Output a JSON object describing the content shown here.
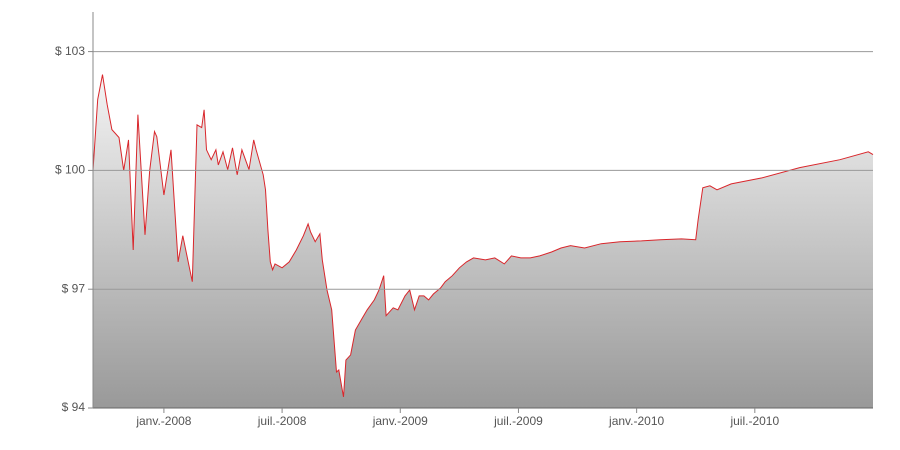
{
  "chart_data": {
    "type": "area",
    "x": [
      2007.7,
      2007.72,
      2007.74,
      2007.76,
      2007.78,
      2007.81,
      2007.83,
      2007.85,
      2007.87,
      2007.89,
      2007.92,
      2007.94,
      2007.96,
      2007.97,
      2008.0,
      2008.03,
      2008.06,
      2008.08,
      2008.12,
      2008.14,
      2008.16,
      2008.17,
      2008.18,
      2008.2,
      2008.22,
      2008.23,
      2008.25,
      2008.27,
      2008.29,
      2008.31,
      2008.33,
      2008.36,
      2008.38,
      2008.39,
      2008.42,
      2008.43,
      2008.44,
      2008.45,
      2008.46,
      2008.47,
      2008.5,
      2008.53,
      2008.56,
      2008.59,
      2008.61,
      2008.62,
      2008.64,
      2008.66,
      2008.67,
      2008.69,
      2008.71,
      2008.73,
      2008.74,
      2008.76,
      2008.77,
      2008.79,
      2008.81,
      2008.84,
      2008.86,
      2008.89,
      2008.91,
      2008.93,
      2008.94,
      2008.97,
      2008.99,
      2009.02,
      2009.04,
      2009.06,
      2009.08,
      2009.1,
      2009.12,
      2009.14,
      2009.17,
      2009.19,
      2009.22,
      2009.25,
      2009.28,
      2009.31,
      2009.36,
      2009.4,
      2009.44,
      2009.47,
      2009.51,
      2009.55,
      2009.59,
      2009.64,
      2009.68,
      2009.72,
      2009.78,
      2009.85,
      2009.93,
      2010.02,
      2010.1,
      2010.19,
      2010.25,
      2010.26,
      2010.28,
      2010.31,
      2010.34,
      2010.4,
      2010.53,
      2010.69,
      2010.86,
      2010.98,
      2011.0
    ],
    "series": [
      {
        "color": "#d9262b",
        "values": [
          100.0,
          101.79,
          102.42,
          101.66,
          101.03,
          100.83,
          100.0,
          100.77,
          97.99,
          101.41,
          98.37,
          100.0,
          100.98,
          100.85,
          99.38,
          100.52,
          97.69,
          98.35,
          97.19,
          101.15,
          101.08,
          101.53,
          100.52,
          100.27,
          100.52,
          100.14,
          100.47,
          100.02,
          100.57,
          99.89,
          100.52,
          100.02,
          100.77,
          100.52,
          99.89,
          99.51,
          98.5,
          97.69,
          97.49,
          97.64,
          97.54,
          97.69,
          97.99,
          98.35,
          98.65,
          98.45,
          98.2,
          98.4,
          97.74,
          96.98,
          96.48,
          94.91,
          94.96,
          94.28,
          95.21,
          95.34,
          95.97,
          96.28,
          96.48,
          96.73,
          96.98,
          97.34,
          96.33,
          96.53,
          96.48,
          96.83,
          96.98,
          96.48,
          96.83,
          96.83,
          96.73,
          96.88,
          97.03,
          97.19,
          97.34,
          97.54,
          97.69,
          97.79,
          97.74,
          97.79,
          97.64,
          97.84,
          97.79,
          97.79,
          97.84,
          97.94,
          98.04,
          98.1,
          98.04,
          98.15,
          98.2,
          98.22,
          98.25,
          98.27,
          98.25,
          98.75,
          99.56,
          99.61,
          99.51,
          99.66,
          99.81,
          100.07,
          100.27,
          100.47,
          100.4
        ]
      }
    ],
    "xlim": [
      2007.7,
      2011.0
    ],
    "xticks": [
      {
        "value": 2008.0,
        "label": "janv.-2008"
      },
      {
        "value": 2008.5,
        "label": "juil.-2008"
      },
      {
        "value": 2009.0,
        "label": "janv.-2009"
      },
      {
        "value": 2009.5,
        "label": "juil.-2009"
      },
      {
        "value": 2010.0,
        "label": "janv.-2010"
      },
      {
        "value": 2010.5,
        "label": "juil.-2010"
      }
    ],
    "ylim": [
      94,
      104
    ],
    "yticks": [
      {
        "value": 94,
        "label": "$ 94"
      },
      {
        "value": 97,
        "label": "$ 97"
      },
      {
        "value": 100,
        "label": "$ 100"
      },
      {
        "value": 103,
        "label": "$ 103"
      }
    ],
    "grid": true
  }
}
